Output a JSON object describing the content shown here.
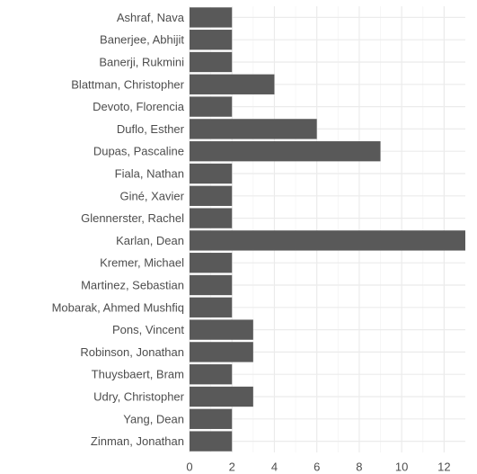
{
  "chart_data": {
    "type": "bar",
    "orientation": "horizontal",
    "title": "",
    "xlabel": "",
    "ylabel": "",
    "categories": [
      "Ashraf, Nava",
      "Banerjee, Abhijit",
      "Banerji, Rukmini",
      "Blattman, Christopher",
      "Devoto, Florencia",
      "Duflo, Esther",
      "Dupas, Pascaline",
      "Fiala, Nathan",
      "Giné, Xavier",
      "Glennerster, Rachel",
      "Karlan, Dean",
      "Kremer, Michael",
      "Martinez, Sebastian",
      "Mobarak, Ahmed Mushfiq",
      "Pons, Vincent",
      "Robinson, Jonathan",
      "Thuysbaert, Bram",
      "Udry, Christopher",
      "Yang, Dean",
      "Zinman, Jonathan"
    ],
    "values": [
      2,
      2,
      2,
      4,
      2,
      6,
      9,
      2,
      2,
      2,
      13,
      2,
      2,
      2,
      3,
      3,
      2,
      3,
      2,
      2
    ],
    "xlim": [
      0,
      13
    ],
    "x_ticks": [
      0,
      2,
      4,
      6,
      8,
      10,
      12
    ],
    "grid": true,
    "legend": "none",
    "colors": {
      "bar": "#595959",
      "grid_major": "#ebebeb",
      "grid_minor": "#f4f4f4",
      "text": "#4d4d4d"
    }
  }
}
